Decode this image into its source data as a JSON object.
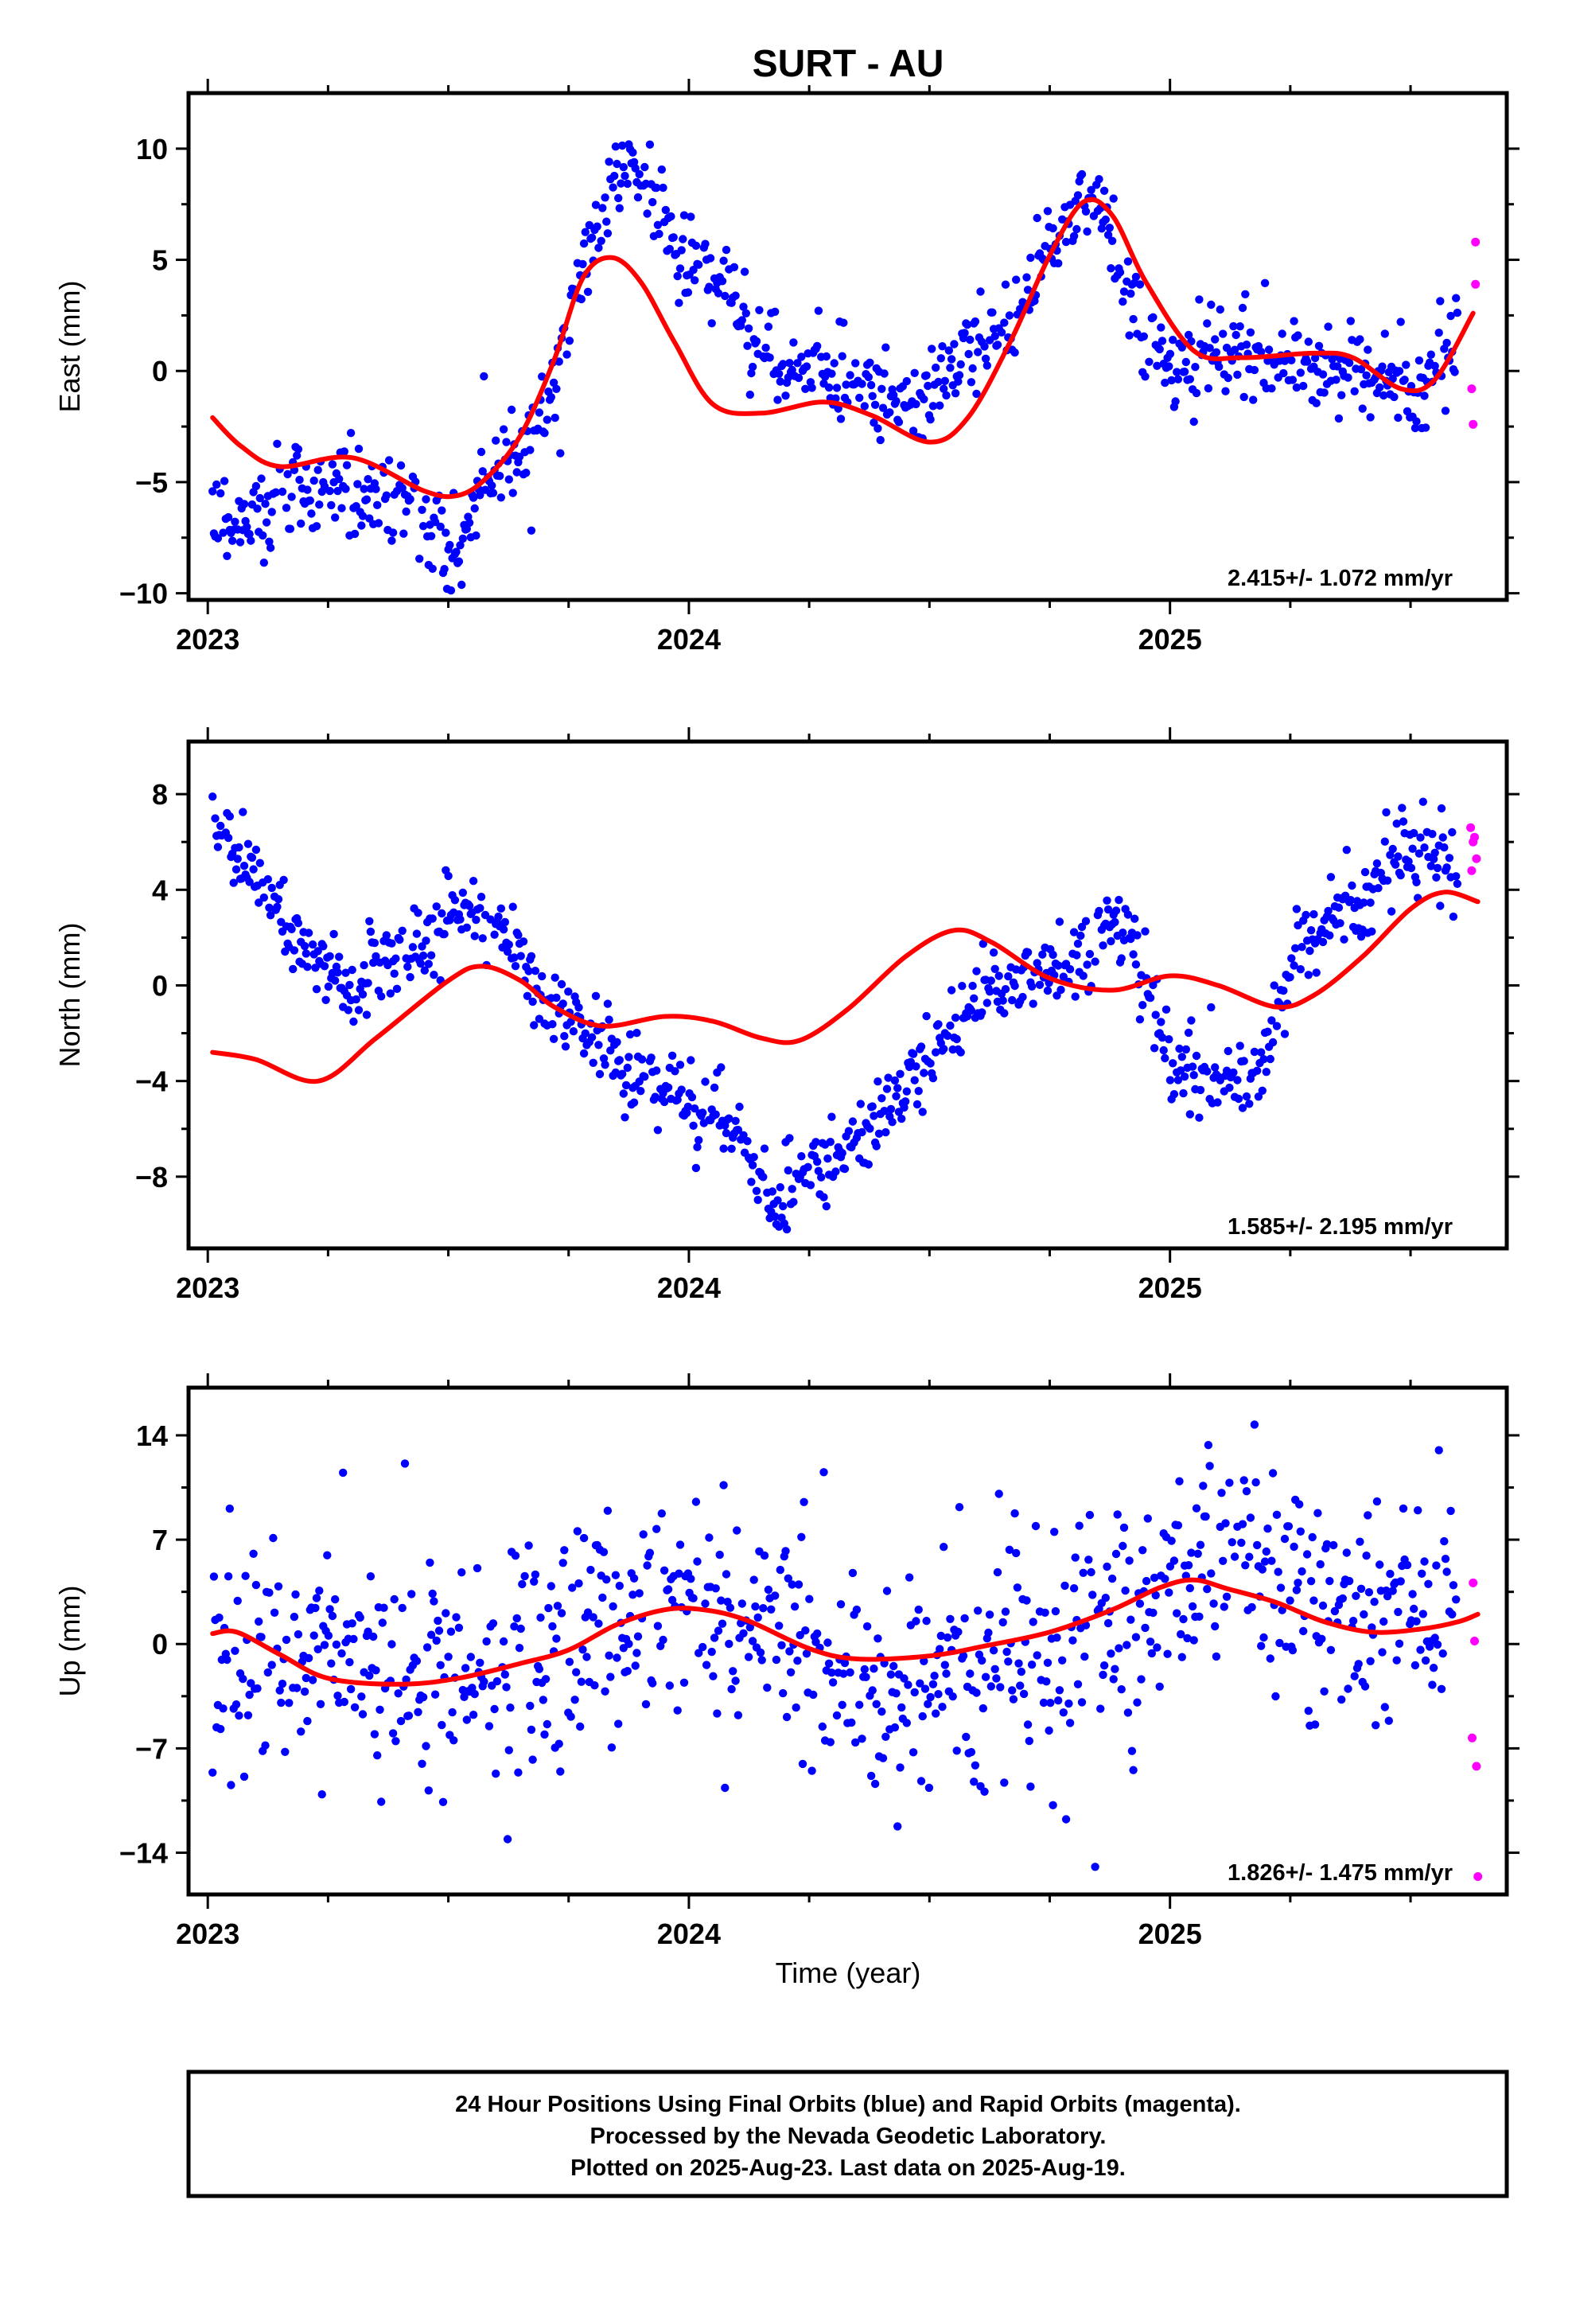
{
  "title": "SURT - AU",
  "xlabel": "Time (year)",
  "footer": {
    "line1": "24 Hour Positions Using Final Orbits (blue) and Rapid Orbits (magenta).",
    "line2": "Processed by the Nevada Geodetic Laboratory.",
    "line3": "Plotted on 2025-Aug-23. Last data on 2025-Aug-19."
  },
  "colors": {
    "final": "#0000ff",
    "rapid": "#ff00ff",
    "fit": "#ff0000",
    "frame": "#000000"
  },
  "chart_data": [
    {
      "type": "scatter",
      "ylabel": "East (mm)",
      "rate_text": "2.415+/- 1.072 mm/yr",
      "xlim": [
        2022.96,
        2025.7
      ],
      "ylim": [
        -10.3,
        12.5
      ],
      "yticks": [
        "10",
        "5",
        "0",
        "-5",
        "-10"
      ],
      "ytick_values": [
        10,
        5,
        0,
        -5,
        -10
      ],
      "xticks": [
        "2023",
        "2024",
        "2025"
      ],
      "xtick_values": [
        2023,
        2024,
        2025
      ],
      "trend_knots": [
        [
          2023.01,
          -2.1
        ],
        [
          2023.07,
          -3.4
        ],
        [
          2023.15,
          -4.3
        ],
        [
          2023.3,
          -3.9
        ],
        [
          2023.45,
          -5.4
        ],
        [
          2023.52,
          -5.6
        ],
        [
          2023.58,
          -4.8
        ],
        [
          2023.65,
          -2.9
        ],
        [
          2023.72,
          0.5
        ],
        [
          2023.78,
          4.2
        ],
        [
          2023.84,
          5.1
        ],
        [
          2023.9,
          4.0
        ],
        [
          2023.97,
          1.3
        ],
        [
          2024.05,
          -1.5
        ],
        [
          2024.15,
          -1.9
        ],
        [
          2024.28,
          -1.4
        ],
        [
          2024.38,
          -2.0
        ],
        [
          2024.5,
          -3.2
        ],
        [
          2024.58,
          -2.1
        ],
        [
          2024.67,
          1.4
        ],
        [
          2024.75,
          5.2
        ],
        [
          2024.82,
          7.6
        ],
        [
          2024.88,
          7.0
        ],
        [
          2024.95,
          4.0
        ],
        [
          2025.05,
          0.9
        ],
        [
          2025.15,
          0.6
        ],
        [
          2025.3,
          0.8
        ],
        [
          2025.38,
          0.6
        ],
        [
          2025.48,
          -0.8
        ],
        [
          2025.55,
          -0.4
        ],
        [
          2025.63,
          2.6
        ]
      ],
      "data_knots": [
        [
          2023.01,
          -6.7
        ],
        [
          2023.1,
          -6.4
        ],
        [
          2023.2,
          -5.4
        ],
        [
          2023.3,
          -5.2
        ],
        [
          2023.42,
          -5.6
        ],
        [
          2023.48,
          -7.5
        ],
        [
          2023.53,
          -7.5
        ],
        [
          2023.57,
          -5.3
        ],
        [
          2023.62,
          -4.1
        ],
        [
          2023.68,
          -3.0
        ],
        [
          2023.72,
          -0.8
        ],
        [
          2023.76,
          3.0
        ],
        [
          2023.8,
          6.0
        ],
        [
          2023.85,
          8.6
        ],
        [
          2023.9,
          8.6
        ],
        [
          2023.94,
          6.6
        ],
        [
          2024.0,
          4.9
        ],
        [
          2024.06,
          4.0
        ],
        [
          2024.12,
          1.8
        ],
        [
          2024.18,
          -0.5
        ],
        [
          2024.22,
          -0.6
        ],
        [
          2024.27,
          0.9
        ],
        [
          2024.33,
          -0.8
        ],
        [
          2024.4,
          -1.0
        ],
        [
          2024.47,
          -1.8
        ],
        [
          2024.52,
          -0.6
        ],
        [
          2024.58,
          0.8
        ],
        [
          2024.64,
          1.6
        ],
        [
          2024.7,
          3.2
        ],
        [
          2024.76,
          5.8
        ],
        [
          2024.82,
          7.8
        ],
        [
          2024.86,
          7.2
        ],
        [
          2024.9,
          3.8
        ],
        [
          2024.95,
          1.2
        ],
        [
          2025.0,
          0.0
        ],
        [
          2025.05,
          0.1
        ],
        [
          2025.12,
          1.0
        ],
        [
          2025.2,
          0.6
        ],
        [
          2025.3,
          0.4
        ],
        [
          2025.38,
          0.3
        ],
        [
          2025.46,
          -0.8
        ],
        [
          2025.52,
          -0.5
        ],
        [
          2025.6,
          0.8
        ]
      ],
      "noise": 1.0,
      "rapid_points": [
        [
          2025.635,
          5.8
        ],
        [
          2025.635,
          3.9
        ],
        [
          2025.627,
          -0.8
        ],
        [
          2025.63,
          -2.4
        ]
      ]
    },
    {
      "type": "scatter",
      "ylabel": "North (mm)",
      "rate_text": "1.585+/- 2.195 mm/yr",
      "xlim": [
        2022.96,
        2025.7
      ],
      "ylim": [
        -11,
        10.2
      ],
      "yticks": [
        "8",
        "4",
        "0",
        "-4",
        "-8"
      ],
      "ytick_values": [
        8,
        4,
        0,
        -4,
        -8
      ],
      "xticks": [
        "2023",
        "2024",
        "2025"
      ],
      "xtick_values": [
        2023,
        2024,
        2025
      ],
      "trend_knots": [
        [
          2023.01,
          -2.8
        ],
        [
          2023.1,
          -3.1
        ],
        [
          2023.23,
          -4.0
        ],
        [
          2023.35,
          -2.2
        ],
        [
          2023.5,
          0.2
        ],
        [
          2023.57,
          0.8
        ],
        [
          2023.65,
          0.2
        ],
        [
          2023.72,
          -0.9
        ],
        [
          2023.82,
          -1.7
        ],
        [
          2023.95,
          -1.3
        ],
        [
          2024.05,
          -1.5
        ],
        [
          2024.15,
          -2.2
        ],
        [
          2024.23,
          -2.3
        ],
        [
          2024.33,
          -1.0
        ],
        [
          2024.45,
          1.2
        ],
        [
          2024.55,
          2.3
        ],
        [
          2024.63,
          1.8
        ],
        [
          2024.75,
          0.3
        ],
        [
          2024.88,
          -0.2
        ],
        [
          2025.0,
          0.4
        ],
        [
          2025.1,
          0.0
        ],
        [
          2025.22,
          -0.9
        ],
        [
          2025.3,
          -0.4
        ],
        [
          2025.4,
          1.2
        ],
        [
          2025.5,
          3.2
        ],
        [
          2025.57,
          3.9
        ],
        [
          2025.64,
          3.5
        ]
      ],
      "data_knots": [
        [
          2023.01,
          7.2
        ],
        [
          2023.06,
          5.5
        ],
        [
          2023.12,
          4.2
        ],
        [
          2023.17,
          2.5
        ],
        [
          2023.22,
          0.9
        ],
        [
          2023.3,
          0.2
        ],
        [
          2023.38,
          1.0
        ],
        [
          2023.45,
          1.7
        ],
        [
          2023.52,
          3.2
        ],
        [
          2023.57,
          3.0
        ],
        [
          2023.63,
          2.0
        ],
        [
          2023.68,
          -0.3
        ],
        [
          2023.74,
          -1.4
        ],
        [
          2023.8,
          -2.5
        ],
        [
          2023.87,
          -3.5
        ],
        [
          2023.95,
          -4.5
        ],
        [
          2024.02,
          -5.5
        ],
        [
          2024.1,
          -6.5
        ],
        [
          2024.17,
          -8.8
        ],
        [
          2024.21,
          -8.7
        ],
        [
          2024.25,
          -7.8
        ],
        [
          2024.3,
          -7.3
        ],
        [
          2024.37,
          -6.2
        ],
        [
          2024.44,
          -4.6
        ],
        [
          2024.5,
          -3.2
        ],
        [
          2024.55,
          -1.6
        ],
        [
          2024.6,
          -0.6
        ],
        [
          2024.65,
          -0.2
        ],
        [
          2024.7,
          0.4
        ],
        [
          2024.76,
          0.5
        ],
        [
          2024.82,
          0.8
        ],
        [
          2024.88,
          2.6
        ],
        [
          2024.92,
          2.0
        ],
        [
          2024.96,
          -1.2
        ],
        [
          2025.01,
          -3.5
        ],
        [
          2025.06,
          -3.8
        ],
        [
          2025.12,
          -3.7
        ],
        [
          2025.16,
          -4.2
        ],
        [
          2025.2,
          -2.5
        ],
        [
          2025.26,
          1.5
        ],
        [
          2025.33,
          2.5
        ],
        [
          2025.4,
          3.8
        ],
        [
          2025.47,
          5.1
        ],
        [
          2025.53,
          5.8
        ],
        [
          2025.6,
          5.5
        ]
      ],
      "noise": 0.85,
      "rapid_points": [
        [
          2025.625,
          6.6
        ],
        [
          2025.63,
          6.0
        ],
        [
          2025.637,
          5.3
        ],
        [
          2025.627,
          4.8
        ],
        [
          2025.633,
          6.2
        ]
      ]
    },
    {
      "type": "scatter",
      "ylabel": "Up (mm)",
      "rate_text": "1.826+/- 1.475 mm/yr",
      "xlim": [
        2022.96,
        2025.7
      ],
      "ylim": [
        -16.8,
        17.2
      ],
      "yticks": [
        "14",
        "7",
        "0",
        "-7",
        "-14"
      ],
      "ytick_values": [
        14,
        7,
        0,
        -7,
        -14
      ],
      "xticks": [
        "2023",
        "2024",
        "2025"
      ],
      "xtick_values": [
        2023,
        2024,
        2025
      ],
      "trend_knots": [
        [
          2023.01,
          0.7
        ],
        [
          2023.06,
          0.8
        ],
        [
          2023.15,
          -0.7
        ],
        [
          2023.25,
          -2.3
        ],
        [
          2023.4,
          -2.7
        ],
        [
          2023.52,
          -2.3
        ],
        [
          2023.65,
          -1.3
        ],
        [
          2023.75,
          -0.4
        ],
        [
          2023.85,
          1.3
        ],
        [
          2023.95,
          2.3
        ],
        [
          2024.03,
          2.3
        ],
        [
          2024.12,
          1.6
        ],
        [
          2024.25,
          -0.3
        ],
        [
          2024.35,
          -1.0
        ],
        [
          2024.5,
          -0.8
        ],
        [
          2024.62,
          -0.1
        ],
        [
          2024.75,
          0.8
        ],
        [
          2024.88,
          2.3
        ],
        [
          2024.98,
          3.8
        ],
        [
          2025.05,
          4.3
        ],
        [
          2025.12,
          3.7
        ],
        [
          2025.22,
          2.8
        ],
        [
          2025.32,
          1.5
        ],
        [
          2025.42,
          0.8
        ],
        [
          2025.52,
          1.0
        ],
        [
          2025.6,
          1.5
        ],
        [
          2025.64,
          2.0
        ]
      ],
      "data_knots": [
        [
          2023.01,
          0.5
        ],
        [
          2023.2,
          -1.5
        ],
        [
          2023.4,
          -2.5
        ],
        [
          2023.6,
          -1.5
        ],
        [
          2023.8,
          0.5
        ],
        [
          2024.0,
          2.0
        ],
        [
          2024.15,
          1.0
        ],
        [
          2024.3,
          -1.5
        ],
        [
          2024.45,
          -3.0
        ],
        [
          2024.6,
          -1.5
        ],
        [
          2024.75,
          -0.5
        ],
        [
          2024.9,
          2.5
        ],
        [
          2025.0,
          4.5
        ],
        [
          2025.1,
          5.0
        ],
        [
          2025.2,
          3.5
        ],
        [
          2025.35,
          2.0
        ],
        [
          2025.5,
          2.0
        ],
        [
          2025.6,
          2.0
        ]
      ],
      "noise": 3.8,
      "rapid_points": [
        [
          2025.63,
          4.1
        ],
        [
          2025.633,
          0.2
        ],
        [
          2025.628,
          -6.3
        ],
        [
          2025.637,
          -8.2
        ],
        [
          2025.64,
          -15.6
        ]
      ]
    }
  ]
}
